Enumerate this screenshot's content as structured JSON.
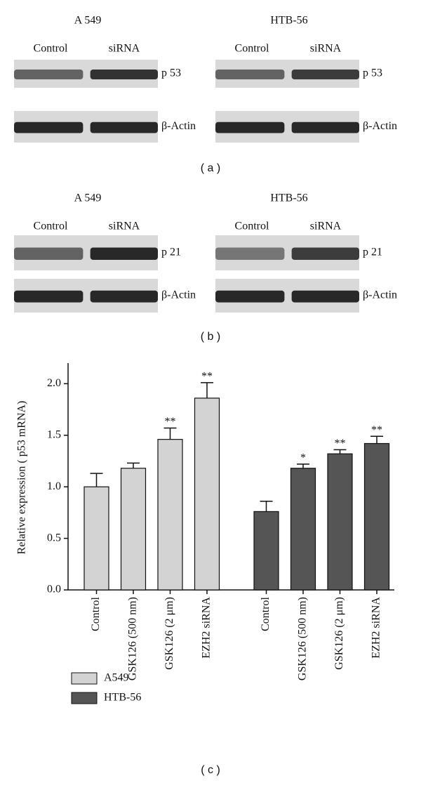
{
  "panel_a": {
    "groups": [
      {
        "title": "A 549",
        "lanes": [
          "Control",
          "siRNA"
        ],
        "rows": [
          "p 53",
          "β-Actin"
        ]
      },
      {
        "title": "HTB-56",
        "lanes": [
          "Control",
          "siRNA"
        ],
        "rows": [
          "p 53",
          "β-Actin"
        ]
      }
    ],
    "caption": "( a )"
  },
  "panel_b": {
    "groups": [
      {
        "title": "A 549",
        "lanes": [
          "Control",
          "siRNA"
        ],
        "rows": [
          "p 21",
          "β-Actin"
        ]
      },
      {
        "title": "HTB-56",
        "lanes": [
          "Control",
          "siRNA"
        ],
        "rows": [
          "p 21",
          "β-Actin"
        ]
      }
    ],
    "caption": "( b )"
  },
  "chart_data": {
    "type": "bar",
    "ylabel": "Relative expression ( p53 mRNA)",
    "categories": [
      "Control",
      "GSK126 (500 nm)",
      "GSK126 (2 μm)",
      "EZH2 siRNA"
    ],
    "series": [
      {
        "name": "A549",
        "color": "#d3d3d3",
        "values": [
          1.0,
          1.18,
          1.46,
          1.86
        ],
        "errors": [
          0.13,
          0.05,
          0.11,
          0.15
        ],
        "significance": [
          null,
          null,
          "**",
          "**"
        ]
      },
      {
        "name": "HTB-56",
        "color": "#555555",
        "values": [
          0.76,
          1.18,
          1.32,
          1.42
        ],
        "errors": [
          0.1,
          0.04,
          0.04,
          0.07
        ],
        "significance": [
          null,
          "*",
          "**",
          "**"
        ]
      }
    ],
    "ylim": [
      0,
      2.2
    ],
    "yticks": [
      {
        "value": 0,
        "label": "0.0"
      },
      0.5,
      {
        "value": 1,
        "label": "1.0"
      },
      1.5,
      {
        "value": 2,
        "label": "2.0"
      }
    ],
    "caption": "( c )"
  }
}
